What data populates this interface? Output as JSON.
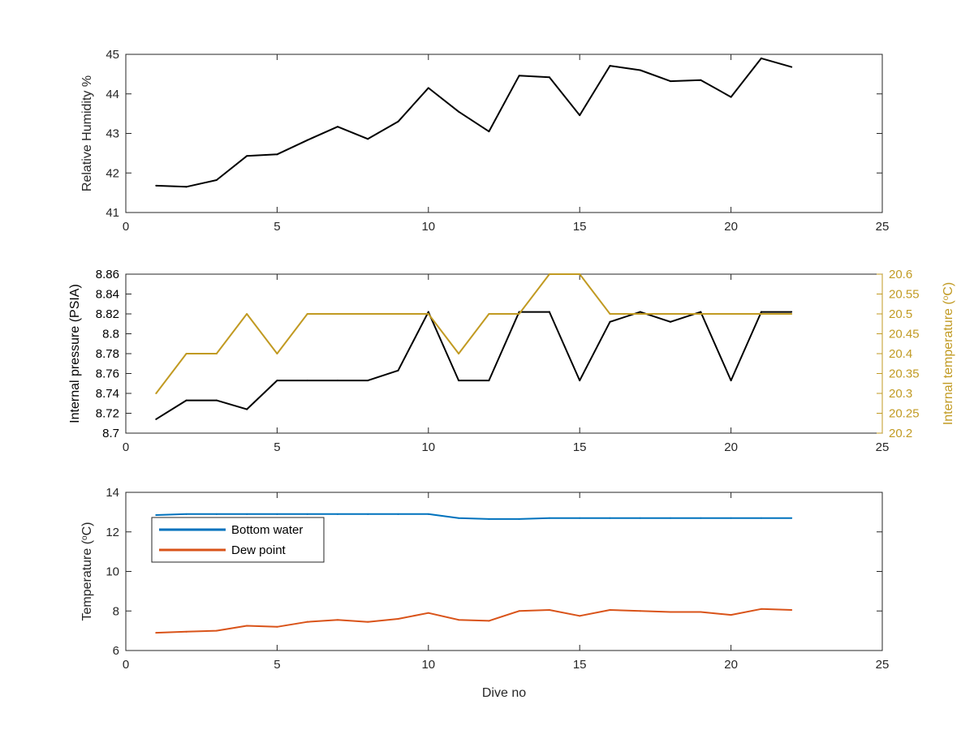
{
  "colors": {
    "black": "#000000",
    "axis": "#262626",
    "gold": "#C19A22",
    "blue": "#0072BD",
    "orange": "#D95319"
  },
  "chart_data": [
    {
      "type": "line",
      "xlabel": "",
      "ylabel": "Relative Humidity %",
      "xlim": [
        0,
        25
      ],
      "ylim": [
        41,
        45
      ],
      "xticks": [
        0,
        5,
        10,
        15,
        20,
        25
      ],
      "yticks": [
        41,
        42,
        43,
        44,
        45
      ],
      "xtick_labels": [
        "0",
        "5",
        "10",
        "15",
        "20",
        "25"
      ],
      "ytick_labels": [
        "41",
        "42",
        "43",
        "44",
        "45"
      ],
      "grid": false,
      "series": [
        {
          "axis": "left",
          "color": "#000000",
          "x": [
            1,
            2,
            3,
            4,
            5,
            6,
            7,
            8,
            9,
            10,
            11,
            12,
            13,
            14,
            15,
            16,
            17,
            18,
            19,
            20,
            21,
            22
          ],
          "y": [
            41.68,
            41.65,
            41.82,
            42.43,
            42.47,
            42.83,
            43.17,
            42.86,
            43.3,
            44.15,
            43.55,
            43.05,
            44.46,
            44.42,
            43.46,
            44.71,
            44.6,
            44.32,
            44.35,
            43.92,
            44.9,
            44.68
          ]
        }
      ]
    },
    {
      "type": "line",
      "xlabel": "",
      "ylabel": "Internal pressure (PSIA)",
      "ylabel_right": "Internal temperature (°C)",
      "xlim": [
        0,
        25
      ],
      "ylim": [
        8.7,
        8.86
      ],
      "ylim_right": [
        20.2,
        20.6
      ],
      "xticks": [
        0,
        5,
        10,
        15,
        20,
        25
      ],
      "yticks": [
        8.7,
        8.72,
        8.74,
        8.76,
        8.78,
        8.8,
        8.82,
        8.84,
        8.86
      ],
      "yticks_right": [
        20.2,
        20.25,
        20.3,
        20.35,
        20.4,
        20.45,
        20.5,
        20.55,
        20.6
      ],
      "xtick_labels": [
        "0",
        "5",
        "10",
        "15",
        "20",
        "25"
      ],
      "ytick_labels": [
        "8.7",
        "8.72",
        "8.74",
        "8.76",
        "8.78",
        "8.8",
        "8.82",
        "8.84",
        "8.86"
      ],
      "ytick_labels_right": [
        "20.2",
        "20.25",
        "20.3",
        "20.35",
        "20.4",
        "20.45",
        "20.5",
        "20.55",
        "20.6"
      ],
      "grid": false,
      "series": [
        {
          "axis": "left",
          "color": "#000000",
          "x": [
            1,
            2,
            3,
            4,
            5,
            6,
            7,
            8,
            9,
            10,
            11,
            12,
            13,
            14,
            15,
            16,
            17,
            18,
            19,
            20,
            21,
            22
          ],
          "y": [
            8.714,
            8.733,
            8.733,
            8.724,
            8.753,
            8.753,
            8.753,
            8.753,
            8.763,
            8.822,
            8.753,
            8.753,
            8.822,
            8.822,
            8.753,
            8.812,
            8.822,
            8.812,
            8.822,
            8.753,
            8.822,
            8.822
          ]
        },
        {
          "axis": "right",
          "color": "#C19A22",
          "x": [
            1,
            2,
            3,
            4,
            5,
            6,
            7,
            8,
            9,
            10,
            11,
            12,
            13,
            14,
            15,
            16,
            17,
            18,
            19,
            20,
            21,
            22
          ],
          "y": [
            20.3,
            20.4,
            20.4,
            20.5,
            20.4,
            20.5,
            20.5,
            20.5,
            20.5,
            20.5,
            20.4,
            20.5,
            20.5,
            20.6,
            20.6,
            20.5,
            20.5,
            20.5,
            20.5,
            20.5,
            20.5,
            20.5
          ]
        }
      ]
    },
    {
      "type": "line",
      "xlabel": "Dive no",
      "ylabel": "Temperature (°C)",
      "xlim": [
        0,
        25
      ],
      "ylim": [
        6,
        14
      ],
      "xticks": [
        0,
        5,
        10,
        15,
        20,
        25
      ],
      "yticks": [
        6,
        8,
        10,
        12,
        14
      ],
      "xtick_labels": [
        "0",
        "5",
        "10",
        "15",
        "20",
        "25"
      ],
      "ytick_labels": [
        "6",
        "8",
        "10",
        "12",
        "14"
      ],
      "grid": false,
      "legend": "top-left",
      "series": [
        {
          "name": "Bottom water",
          "axis": "left",
          "color": "#0072BD",
          "x": [
            1,
            2,
            3,
            4,
            5,
            6,
            7,
            8,
            9,
            10,
            11,
            12,
            13,
            14,
            15,
            16,
            17,
            18,
            19,
            20,
            21,
            22
          ],
          "y": [
            12.85,
            12.9,
            12.9,
            12.9,
            12.9,
            12.9,
            12.9,
            12.9,
            12.9,
            12.9,
            12.7,
            12.65,
            12.65,
            12.7,
            12.7,
            12.7,
            12.7,
            12.7,
            12.7,
            12.7,
            12.7,
            12.7
          ]
        },
        {
          "name": "Dew point",
          "axis": "left",
          "color": "#D95319",
          "x": [
            1,
            2,
            3,
            4,
            5,
            6,
            7,
            8,
            9,
            10,
            11,
            12,
            13,
            14,
            15,
            16,
            17,
            18,
            19,
            20,
            21,
            22
          ],
          "y": [
            6.9,
            6.95,
            7.0,
            7.25,
            7.2,
            7.45,
            7.55,
            7.45,
            7.6,
            7.9,
            7.55,
            7.5,
            8.0,
            8.05,
            7.75,
            8.05,
            8.0,
            7.95,
            7.95,
            7.8,
            8.1,
            8.05
          ]
        }
      ]
    }
  ]
}
